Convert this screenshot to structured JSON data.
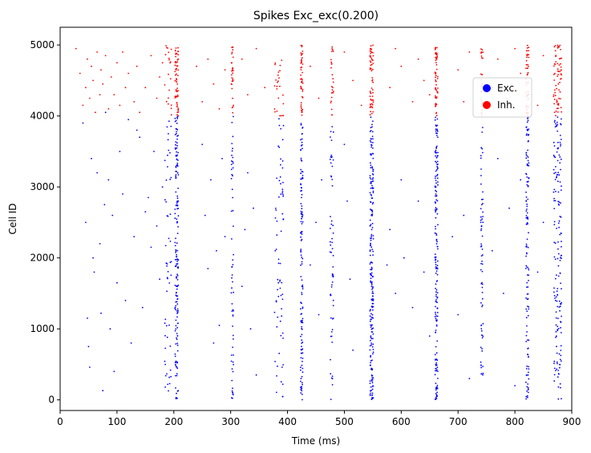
{
  "chart_data": {
    "type": "scatter",
    "title": "Spikes Exc_exc(0.200)",
    "xlabel": "Time (ms)",
    "ylabel": "Cell ID",
    "xlim": [
      0,
      900
    ],
    "ylim": [
      -150,
      5250
    ],
    "xticks": [
      0,
      100,
      200,
      300,
      400,
      500,
      600,
      700,
      800,
      900
    ],
    "yticks": [
      0,
      1000,
      2000,
      3000,
      4000,
      5000
    ],
    "grid": false,
    "legend": {
      "placement": "upper-right"
    },
    "colors": {
      "exc": "#0000ff",
      "inh": "#ff0000"
    },
    "series": [
      {
        "name": "Exc.",
        "color": "#0000ff",
        "id_range": [
          0,
          4000
        ],
        "bursts": [
          {
            "t": 205,
            "width": 6,
            "count": 170
          },
          {
            "t": 190,
            "width": 12,
            "count": 50
          },
          {
            "t": 303,
            "width": 4,
            "count": 60
          },
          {
            "t": 385,
            "width": 16,
            "count": 70
          },
          {
            "t": 425,
            "width": 4,
            "count": 130
          },
          {
            "t": 478,
            "width": 6,
            "count": 60
          },
          {
            "t": 548,
            "width": 6,
            "count": 220
          },
          {
            "t": 662,
            "width": 5,
            "count": 180
          },
          {
            "t": 742,
            "width": 4,
            "count": 70
          },
          {
            "t": 822,
            "width": 5,
            "count": 130
          },
          {
            "t": 875,
            "width": 14,
            "count": 160
          }
        ],
        "sparse_points": [
          [
            40,
            3900
          ],
          [
            45,
            2500
          ],
          [
            48,
            1150
          ],
          [
            50,
            750
          ],
          [
            52,
            460
          ],
          [
            55,
            3400
          ],
          [
            58,
            2000
          ],
          [
            60,
            1800
          ],
          [
            65,
            3200
          ],
          [
            70,
            2200
          ],
          [
            72,
            1220
          ],
          [
            75,
            130
          ],
          [
            78,
            2750
          ],
          [
            80,
            4050
          ],
          [
            85,
            3100
          ],
          [
            88,
            1000
          ],
          [
            92,
            2600
          ],
          [
            95,
            400
          ],
          [
            100,
            1650
          ],
          [
            105,
            3500
          ],
          [
            110,
            2900
          ],
          [
            115,
            1400
          ],
          [
            120,
            3950
          ],
          [
            125,
            800
          ],
          [
            130,
            2300
          ],
          [
            135,
            3800
          ],
          [
            140,
            3700
          ],
          [
            145,
            1300
          ],
          [
            150,
            2650
          ],
          [
            155,
            2850
          ],
          [
            160,
            2150
          ],
          [
            165,
            3500
          ],
          [
            170,
            2450
          ],
          [
            175,
            1700
          ],
          [
            180,
            3000
          ],
          [
            185,
            500
          ],
          [
            250,
            3600
          ],
          [
            255,
            2600
          ],
          [
            260,
            1850
          ],
          [
            265,
            3100
          ],
          [
            270,
            800
          ],
          [
            275,
            2100
          ],
          [
            280,
            1050
          ],
          [
            285,
            3400
          ],
          [
            290,
            2300
          ],
          [
            320,
            1600
          ],
          [
            325,
            2400
          ],
          [
            330,
            3200
          ],
          [
            335,
            1000
          ],
          [
            340,
            2700
          ],
          [
            345,
            350
          ],
          [
            440,
            1900
          ],
          [
            450,
            2500
          ],
          [
            455,
            1200
          ],
          [
            460,
            3100
          ],
          [
            500,
            3600
          ],
          [
            505,
            2800
          ],
          [
            510,
            1700
          ],
          [
            515,
            700
          ],
          [
            575,
            1900
          ],
          [
            580,
            2400
          ],
          [
            590,
            1500
          ],
          [
            600,
            3100
          ],
          [
            605,
            2000
          ],
          [
            620,
            1300
          ],
          [
            630,
            2800
          ],
          [
            640,
            1800
          ],
          [
            650,
            900
          ],
          [
            690,
            2300
          ],
          [
            700,
            1200
          ],
          [
            710,
            2600
          ],
          [
            720,
            300
          ],
          [
            760,
            2100
          ],
          [
            770,
            3400
          ],
          [
            780,
            1500
          ],
          [
            790,
            2700
          ],
          [
            800,
            200
          ],
          [
            810,
            3100
          ],
          [
            840,
            1800
          ],
          [
            850,
            2500
          ]
        ]
      },
      {
        "name": "Inh.",
        "color": "#ff0000",
        "id_range": [
          4000,
          5000
        ],
        "bursts": [
          {
            "t": 205,
            "width": 6,
            "count": 60
          },
          {
            "t": 190,
            "width": 12,
            "count": 20
          },
          {
            "t": 303,
            "width": 4,
            "count": 30
          },
          {
            "t": 385,
            "width": 16,
            "count": 25
          },
          {
            "t": 425,
            "width": 4,
            "count": 45
          },
          {
            "t": 478,
            "width": 6,
            "count": 25
          },
          {
            "t": 548,
            "width": 6,
            "count": 60
          },
          {
            "t": 662,
            "width": 5,
            "count": 55
          },
          {
            "t": 742,
            "width": 4,
            "count": 25
          },
          {
            "t": 822,
            "width": 5,
            "count": 45
          },
          {
            "t": 875,
            "width": 14,
            "count": 70
          }
        ],
        "sparse_points": [
          [
            28,
            4950
          ],
          [
            35,
            4600
          ],
          [
            40,
            4150
          ],
          [
            45,
            4400
          ],
          [
            48,
            4800
          ],
          [
            52,
            4250
          ],
          [
            55,
            4700
          ],
          [
            58,
            4500
          ],
          [
            62,
            4050
          ],
          [
            65,
            4900
          ],
          [
            70,
            4300
          ],
          [
            72,
            4650
          ],
          [
            75,
            4450
          ],
          [
            80,
            4850
          ],
          [
            85,
            4100
          ],
          [
            90,
            4550
          ],
          [
            95,
            4300
          ],
          [
            100,
            4750
          ],
          [
            105,
            4150
          ],
          [
            110,
            4900
          ],
          [
            115,
            4400
          ],
          [
            120,
            4600
          ],
          [
            130,
            4200
          ],
          [
            135,
            4700
          ],
          [
            140,
            4050
          ],
          [
            150,
            4400
          ],
          [
            160,
            4850
          ],
          [
            170,
            4250
          ],
          [
            175,
            4550
          ],
          [
            180,
            4750
          ],
          [
            240,
            4700
          ],
          [
            250,
            4200
          ],
          [
            260,
            4800
          ],
          [
            270,
            4450
          ],
          [
            280,
            4100
          ],
          [
            290,
            4650
          ],
          [
            320,
            4800
          ],
          [
            330,
            4300
          ],
          [
            345,
            4950
          ],
          [
            360,
            4400
          ],
          [
            440,
            4700
          ],
          [
            455,
            4250
          ],
          [
            500,
            4900
          ],
          [
            515,
            4500
          ],
          [
            530,
            4150
          ],
          [
            580,
            4400
          ],
          [
            590,
            4950
          ],
          [
            600,
            4700
          ],
          [
            620,
            4200
          ],
          [
            630,
            4800
          ],
          [
            640,
            4500
          ],
          [
            650,
            4300
          ],
          [
            700,
            4650
          ],
          [
            710,
            4200
          ],
          [
            720,
            4900
          ],
          [
            760,
            4400
          ],
          [
            770,
            4800
          ],
          [
            785,
            4250
          ],
          [
            800,
            4950
          ],
          [
            810,
            4600
          ],
          [
            840,
            4150
          ],
          [
            850,
            4850
          ]
        ]
      }
    ]
  }
}
